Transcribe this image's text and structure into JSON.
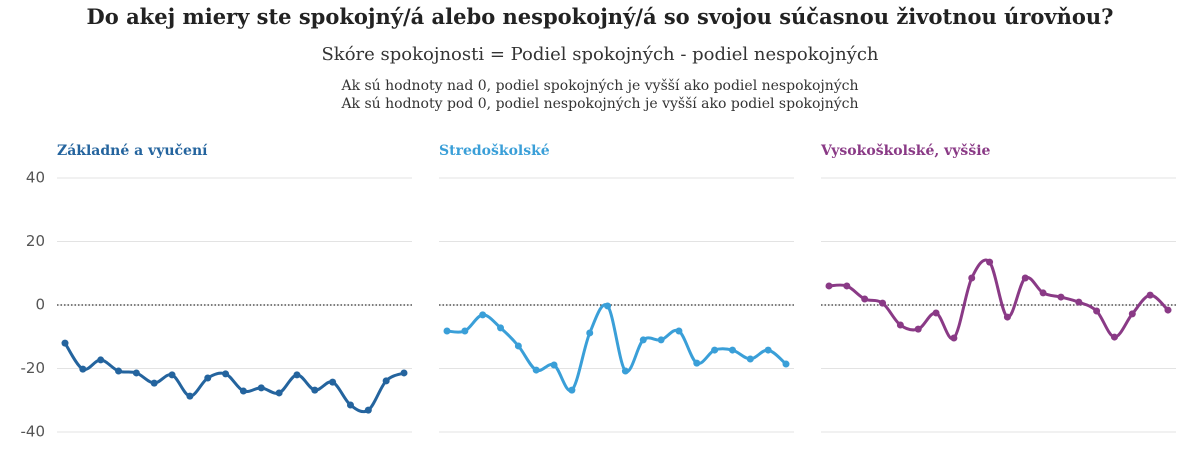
{
  "header": {
    "title": "Do akej miery ste spokojný/á alebo nespokojný/á so svojou súčasnou životnou úrovňou?",
    "subtitle": "Skóre spokojnosti = Podiel spokojných - podiel nespokojných",
    "notes": [
      "Ak sú hodnoty nad 0, podiel spokojných je vyšší ako podiel nespokojných",
      "Ak sú hodnoty pod 0, podiel nespokojných je vyšší ako podiel spokojných"
    ]
  },
  "chart_data": [
    {
      "type": "line",
      "title": "Základné a vyučení",
      "color": "#24649e",
      "values": [
        -12.0,
        -20.2,
        -17.3,
        -20.8,
        -21.4,
        -24.6,
        -22.0,
        -28.7,
        -23.0,
        -21.7,
        -27.1,
        -26.1,
        -27.7,
        -22.0,
        -26.8,
        -24.3,
        -31.5,
        -33.1,
        -23.9,
        -21.4
      ],
      "ylim": [
        -40,
        40
      ],
      "yticks": [
        -40,
        -20,
        0,
        20,
        40
      ],
      "grid": true,
      "reference_line": 0,
      "show_ytick_labels": true
    },
    {
      "type": "line",
      "title": "Stredoškolské",
      "color": "#3a9fd8",
      "values": [
        -8.2,
        -8.2,
        -3.1,
        -7.2,
        -12.9,
        -20.5,
        -18.9,
        -26.8,
        -8.8,
        -0.3,
        -20.8,
        -11.0,
        -11.0,
        -8.2,
        -18.3,
        -14.2,
        -14.2,
        -17.0,
        -14.2,
        -18.6
      ],
      "ylim": [
        -40,
        40
      ],
      "yticks": [
        -40,
        -20,
        0,
        20,
        40
      ],
      "grid": true,
      "reference_line": 0,
      "show_ytick_labels": false
    },
    {
      "type": "line",
      "title": "Vysokoškolské, vyššie",
      "color": "#8a3a86",
      "values": [
        6.0,
        6.0,
        1.9,
        0.6,
        -6.3,
        -7.6,
        -2.5,
        -10.4,
        8.5,
        13.5,
        -3.8,
        8.5,
        3.8,
        2.5,
        0.9,
        -1.9,
        -10.1,
        -2.8,
        3.1,
        -1.6
      ],
      "ylim": [
        -40,
        40
      ],
      "yticks": [
        -40,
        -20,
        0,
        20,
        40
      ],
      "grid": true,
      "reference_line": 0,
      "show_ytick_labels": false
    }
  ]
}
